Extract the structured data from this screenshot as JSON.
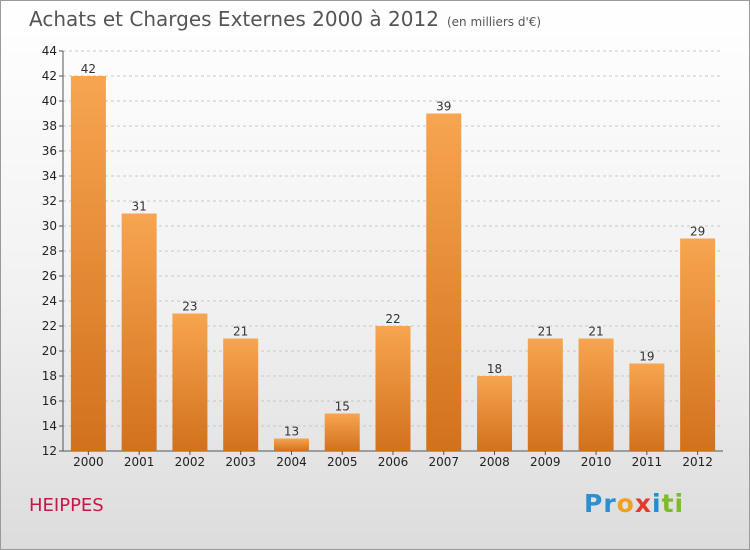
{
  "header": {
    "title": "Achats et Charges Externes 2000 à 2012",
    "subtitle": "(en milliers d'€)"
  },
  "footer": {
    "place": "HEIPPES",
    "brand_letters": [
      {
        "ch": "P",
        "color": "#2d8fd0"
      },
      {
        "ch": "r",
        "color": "#2d8fd0"
      },
      {
        "ch": "o",
        "color": "#f0a020"
      },
      {
        "ch": "x",
        "color": "#e23b2d"
      },
      {
        "ch": "i",
        "color": "#1f8fd0"
      },
      {
        "ch": "t",
        "color": "#7dbb2a"
      },
      {
        "ch": "i",
        "color": "#7dbb2a"
      }
    ]
  },
  "colors": {
    "bar_light": "#f7a550",
    "bar_dark": "#d2711c",
    "grid": "#c8c8c8",
    "axis": "#555555"
  },
  "chart_data": {
    "type": "bar",
    "categories": [
      "2000",
      "2001",
      "2002",
      "2003",
      "2004",
      "2005",
      "2006",
      "2007",
      "2008",
      "2009",
      "2010",
      "2011",
      "2012"
    ],
    "values": [
      42,
      31,
      23,
      21,
      13,
      15,
      22,
      39,
      18,
      21,
      21,
      19,
      29
    ],
    "ylim": [
      12,
      44
    ],
    "yticks": [
      12,
      14,
      16,
      18,
      20,
      22,
      24,
      26,
      28,
      30,
      32,
      34,
      36,
      38,
      40,
      42,
      44
    ],
    "grid": true,
    "data_labels": true
  }
}
